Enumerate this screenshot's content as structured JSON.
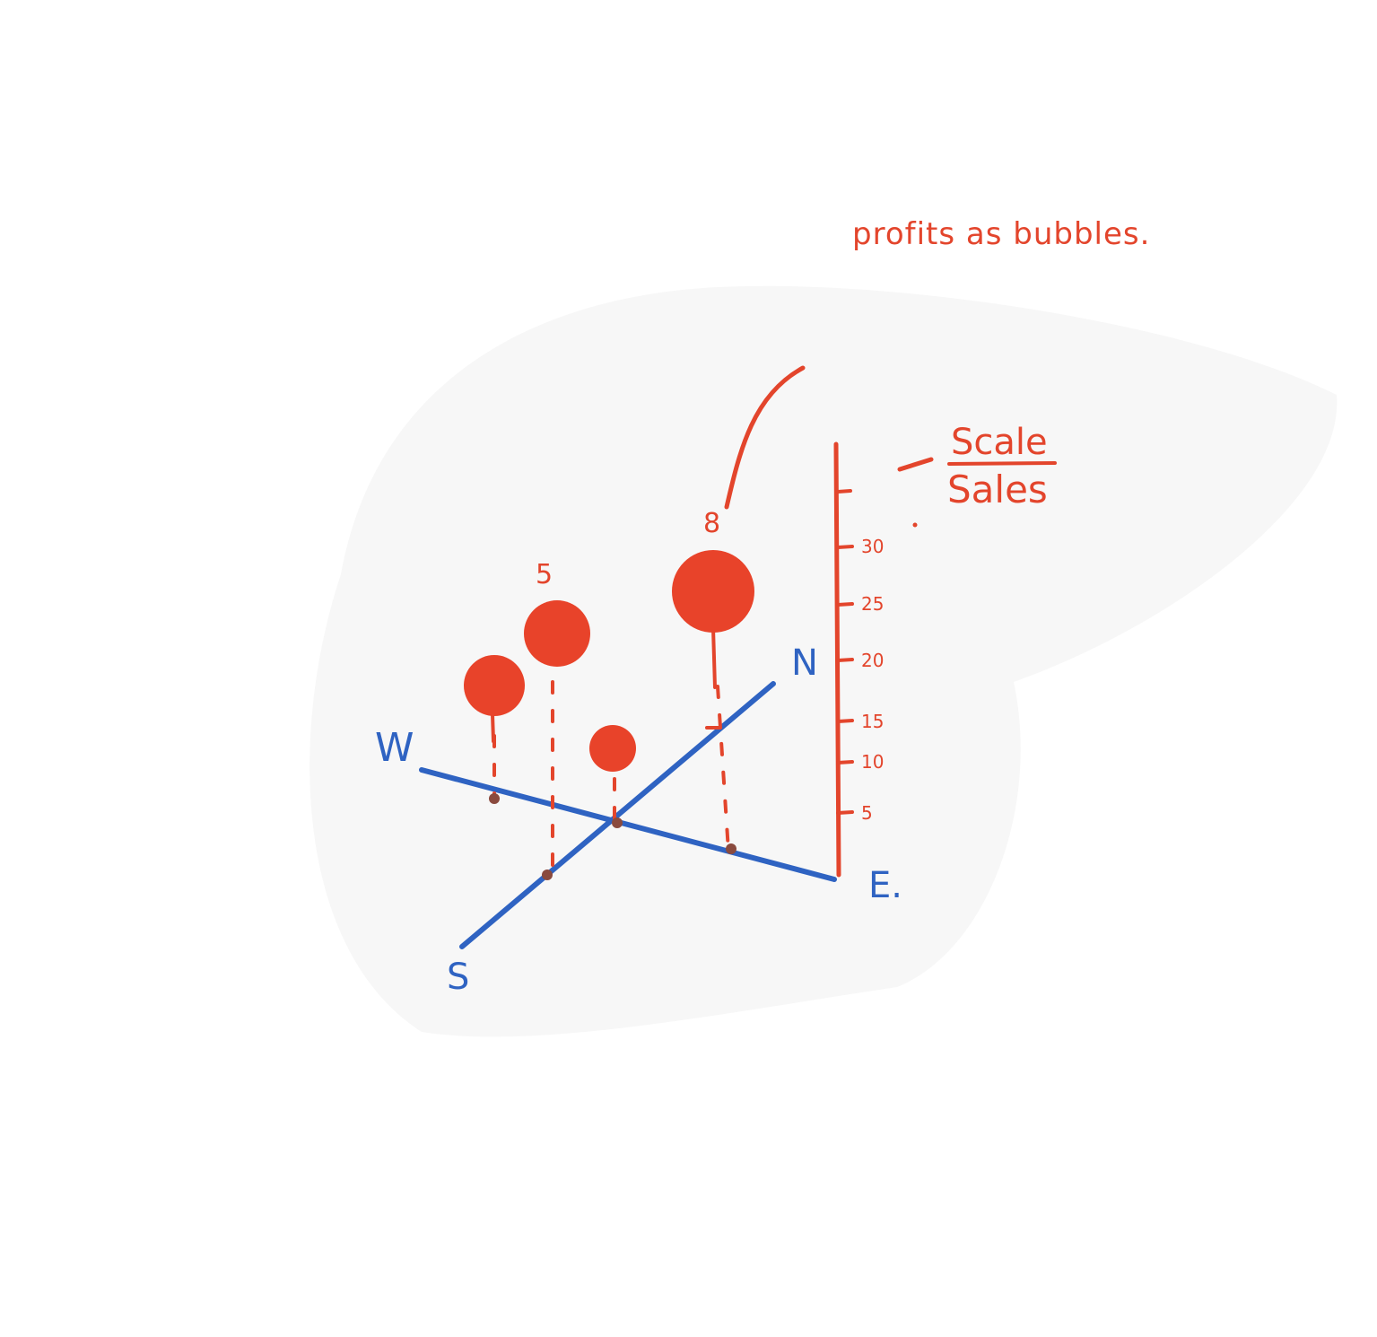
{
  "note": "profits as bubbles.",
  "scale": {
    "header": "Scale",
    "axis_title": "Sales",
    "ticks": [
      "5",
      "10",
      "15",
      "20",
      "25",
      "30"
    ]
  },
  "compass": {
    "north": "N",
    "south": "S",
    "east": "E.",
    "west": "W"
  },
  "bubble_labels": [
    "5",
    "8"
  ],
  "colors": {
    "ink_red": "#e3452c",
    "ink_blue": "#2f63c2",
    "paper": "#ffffff"
  }
}
